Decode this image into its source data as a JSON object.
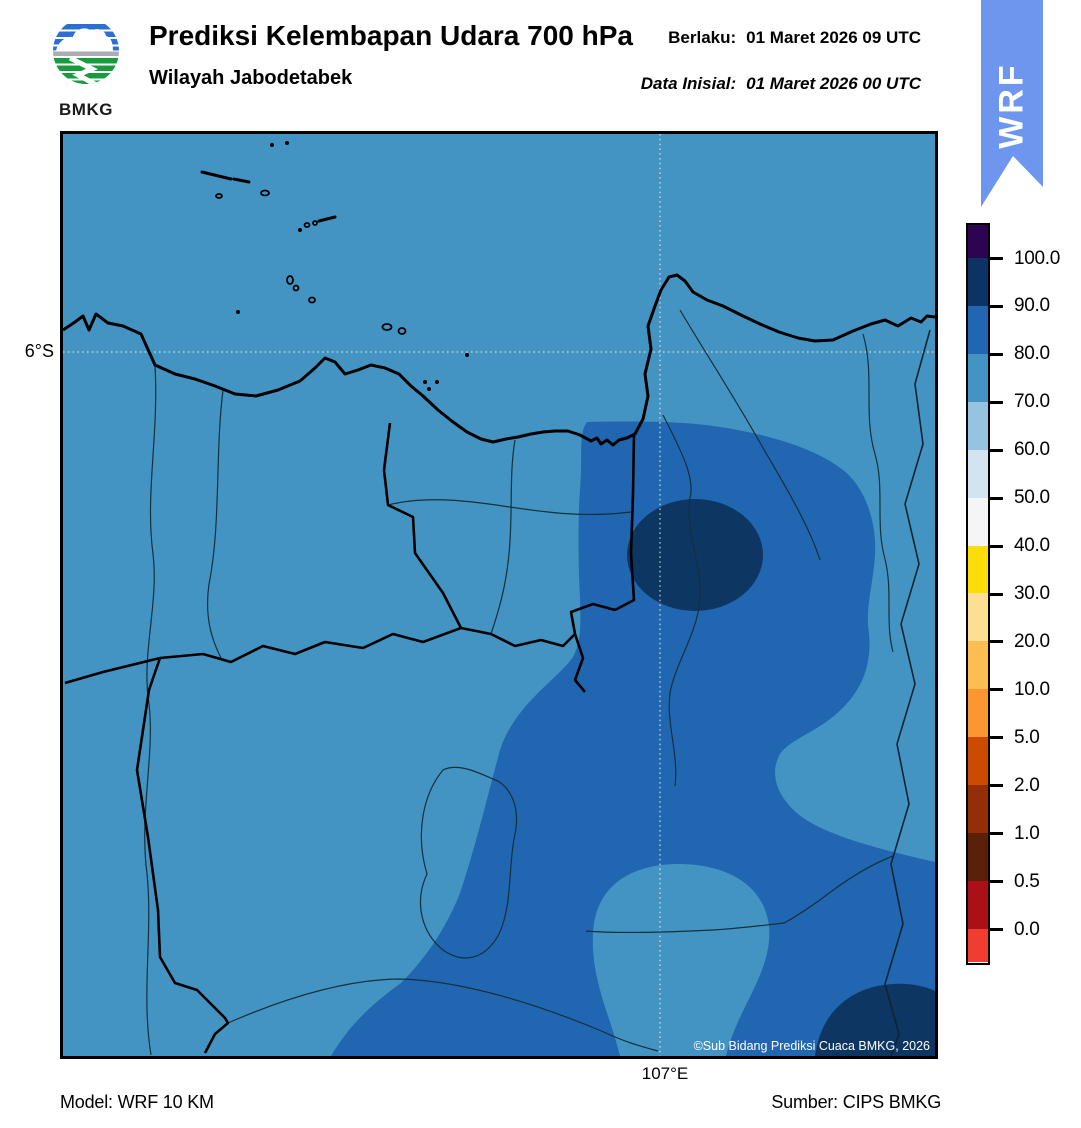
{
  "palette": {
    "rh_70_80": "#4394c3",
    "rh_80_90": "#2166b0",
    "rh_90_100": "#0d3662",
    "ribbon": "#6e96ee",
    "grid_line": "#e9e9df",
    "logo_blue": "#2b6fd4",
    "logo_green": "#189a3e",
    "logo_gray": "#a8aeb4"
  },
  "header": {
    "title": "Prediksi Kelembapan Udara 700 hPa",
    "subtitle": "Wilayah Jabodetabek",
    "logo_text": "BMKG",
    "valid_label": "Berlaku:",
    "valid_value": "01 Maret 2026 09 UTC",
    "initial_label": "Data Inisial:",
    "initial_value": "01 Maret 2026 00 UTC",
    "ribbon_label": "WRF"
  },
  "map": {
    "lat_tick": "6°S",
    "lon_tick": "107°E",
    "copyright": "©Sub Bidang Prediksi Cuaca BMKG, 2026"
  },
  "colorbar": {
    "tick_labels": [
      "100.0",
      "90.0",
      "80.0",
      "70.0",
      "60.0",
      "50.0",
      "40.0",
      "30.0",
      "20.0",
      "10.0",
      "5.0",
      "2.0",
      "1.0",
      "0.5",
      "0.0"
    ],
    "segment_colors_top_to_bottom": [
      "#2d0452",
      "#0d3264",
      "#2166b0",
      "#4394c3",
      "#94c4df",
      "#d3e4f0",
      "#f5f4f7",
      "#fcdd0a",
      "#fcdf93",
      "#fcbd52",
      "#fc9632",
      "#cc4b02",
      "#942e08",
      "#5b2108",
      "#ab1016",
      "#ef3d32"
    ]
  },
  "footer": {
    "model": "Model: WRF 10 KM",
    "source": "Sumber: CIPS BMKG"
  },
  "chart_data": {
    "type": "heatmap",
    "title": "Prediksi Kelembapan Udara 700 hPa",
    "region": "Wilayah Jabodetabek",
    "valid_time": "01 Maret 2026 09 UTC",
    "initial_time": "01 Maret 2026 00 UTC",
    "model": "WRF 10 KM",
    "source": "CIPS BMKG",
    "colorbar_levels": [
      0.0,
      0.5,
      1.0,
      2.0,
      5.0,
      10.0,
      20.0,
      30.0,
      40.0,
      50.0,
      60.0,
      70.0,
      80.0,
      90.0,
      100.0
    ],
    "axis_ticks": {
      "lat": [
        "6°S"
      ],
      "lon": [
        "107°E"
      ]
    },
    "field_regions": [
      {
        "range": "70-80",
        "note": "dominant background value over sea and most land"
      },
      {
        "range": "80-90",
        "note": "broad lobe over the east, sweeping down to the bottom-centre and bottom-left"
      },
      {
        "range": "90-100",
        "note": "closed oval northeast of map centre and a blob in the bottom-right corner"
      }
    ]
  }
}
